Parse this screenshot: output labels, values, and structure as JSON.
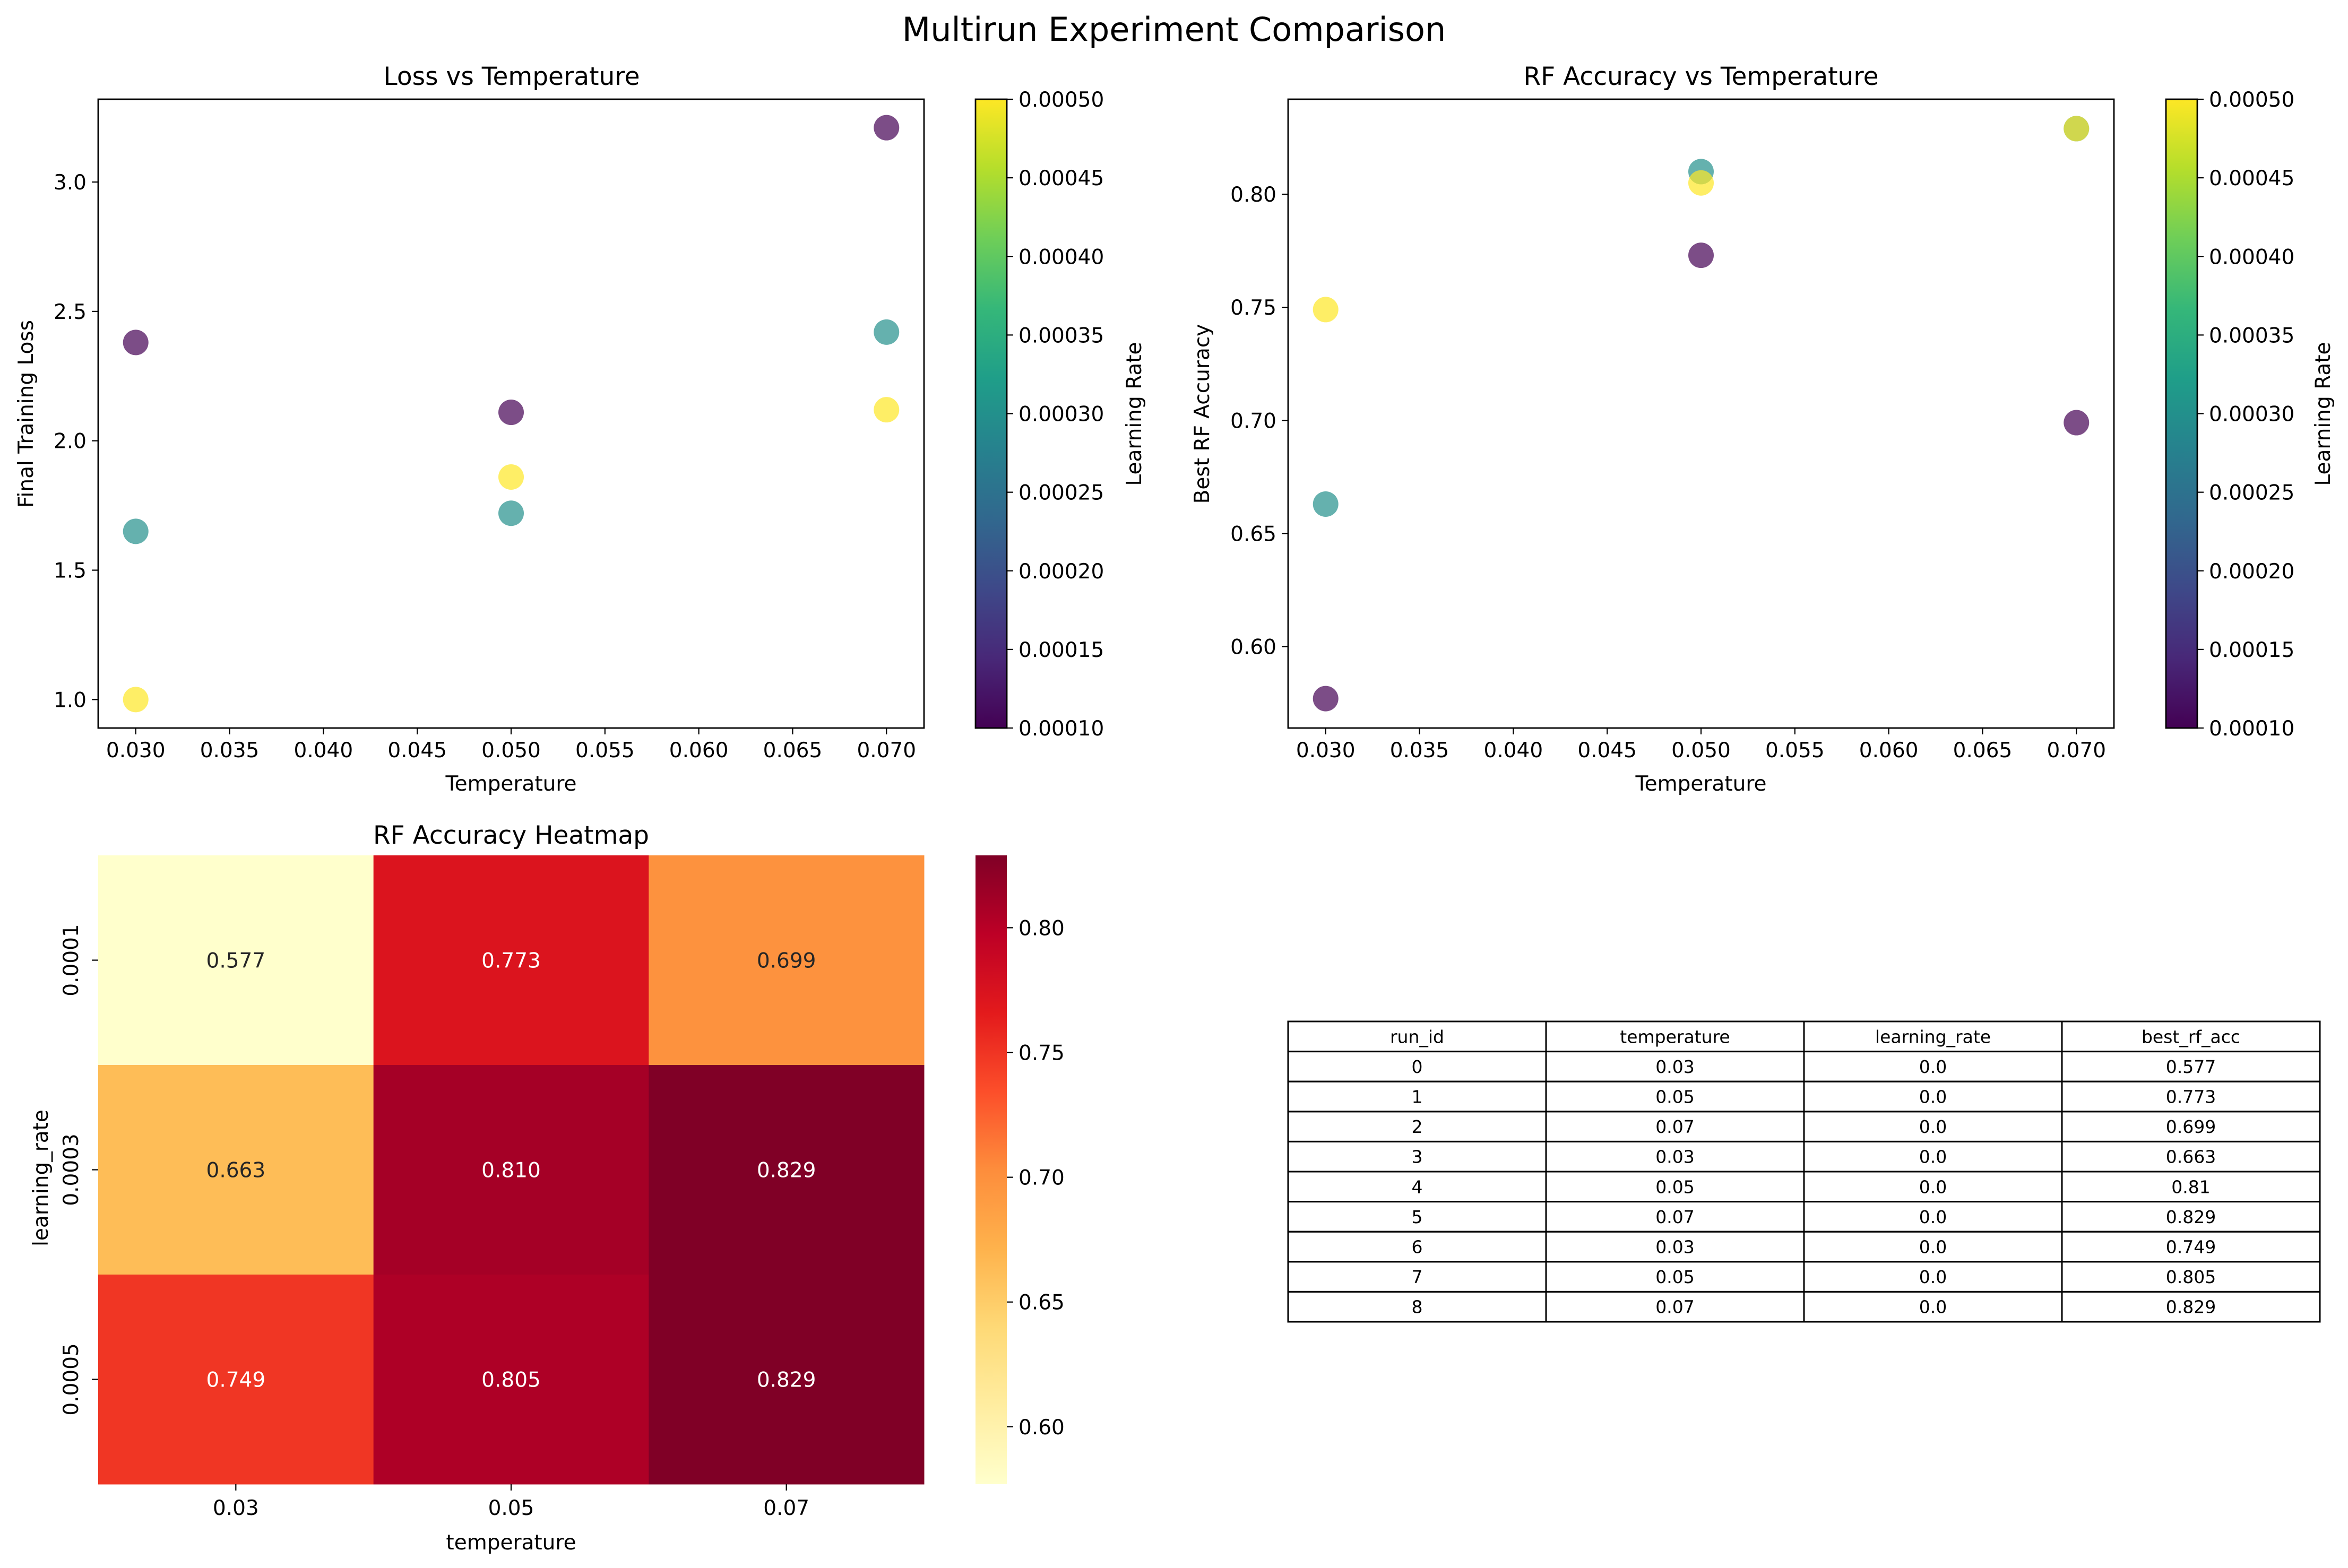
{
  "figure": {
    "suptitle": "Multirun Experiment Comparison"
  },
  "colors": {
    "viridis": [
      "#440154",
      "#482878",
      "#3e4989",
      "#31688e",
      "#26828e",
      "#1f9e89",
      "#35b779",
      "#6ece58",
      "#b5de2b",
      "#fde725"
    ],
    "ylorrd": [
      "#ffffcc",
      "#ffeda0",
      "#fed976",
      "#feb24c",
      "#fd8d3c",
      "#fc4e2a",
      "#e31a1c",
      "#bd0026",
      "#800026"
    ]
  },
  "chart_data": [
    {
      "type": "scatter",
      "title": "Loss vs Temperature",
      "xlabel": "Temperature",
      "ylabel": "Final Training Loss",
      "xlim": [
        0.028,
        0.072
      ],
      "ylim": [
        0.89,
        3.32
      ],
      "xticks": [
        0.03,
        0.035,
        0.04,
        0.045,
        0.05,
        0.055,
        0.06,
        0.065,
        0.07
      ],
      "xtick_labels": [
        "0.030",
        "0.035",
        "0.040",
        "0.045",
        "0.050",
        "0.055",
        "0.060",
        "0.065",
        "0.070"
      ],
      "yticks": [
        1.0,
        1.5,
        2.0,
        2.5,
        3.0
      ],
      "ytick_labels": [
        "1.0",
        "1.5",
        "2.0",
        "2.5",
        "3.0"
      ],
      "colorbar": {
        "label": "Learning Rate",
        "range": [
          0.0001,
          0.0005
        ],
        "ticks": [
          0.0001,
          0.00015,
          0.0002,
          0.00025,
          0.0003,
          0.00035,
          0.0004,
          0.00045,
          0.0005
        ],
        "tick_labels": [
          "0.00010",
          "0.00015",
          "0.00020",
          "0.00025",
          "0.00030",
          "0.00035",
          "0.00040",
          "0.00045",
          "0.00050"
        ]
      },
      "points": [
        {
          "x": 0.03,
          "y": 2.38,
          "c": 0.0001
        },
        {
          "x": 0.05,
          "y": 2.11,
          "c": 0.0001
        },
        {
          "x": 0.07,
          "y": 3.21,
          "c": 0.0001
        },
        {
          "x": 0.03,
          "y": 1.65,
          "c": 0.0003
        },
        {
          "x": 0.05,
          "y": 1.72,
          "c": 0.0003
        },
        {
          "x": 0.07,
          "y": 2.42,
          "c": 0.0003
        },
        {
          "x": 0.03,
          "y": 1.0,
          "c": 0.0005
        },
        {
          "x": 0.05,
          "y": 1.86,
          "c": 0.0005
        },
        {
          "x": 0.07,
          "y": 2.12,
          "c": 0.0005
        }
      ]
    },
    {
      "type": "scatter",
      "title": "RF Accuracy vs Temperature",
      "xlabel": "Temperature",
      "ylabel": "Best RF Accuracy",
      "xlim": [
        0.028,
        0.072
      ],
      "ylim": [
        0.564,
        0.842
      ],
      "xticks": [
        0.03,
        0.035,
        0.04,
        0.045,
        0.05,
        0.055,
        0.06,
        0.065,
        0.07
      ],
      "xtick_labels": [
        "0.030",
        "0.035",
        "0.040",
        "0.045",
        "0.050",
        "0.055",
        "0.060",
        "0.065",
        "0.070"
      ],
      "yticks": [
        0.6,
        0.65,
        0.7,
        0.75,
        0.8
      ],
      "ytick_labels": [
        "0.60",
        "0.65",
        "0.70",
        "0.75",
        "0.80"
      ],
      "colorbar": {
        "label": "Learning Rate",
        "range": [
          0.0001,
          0.0005
        ],
        "ticks": [
          0.0001,
          0.00015,
          0.0002,
          0.00025,
          0.0003,
          0.00035,
          0.0004,
          0.00045,
          0.0005
        ],
        "tick_labels": [
          "0.00010",
          "0.00015",
          "0.00020",
          "0.00025",
          "0.00030",
          "0.00035",
          "0.00040",
          "0.00045",
          "0.00050"
        ]
      },
      "points": [
        {
          "x": 0.03,
          "y": 0.577,
          "c": 0.0001
        },
        {
          "x": 0.05,
          "y": 0.773,
          "c": 0.0001
        },
        {
          "x": 0.07,
          "y": 0.699,
          "c": 0.0001
        },
        {
          "x": 0.03,
          "y": 0.663,
          "c": 0.0003
        },
        {
          "x": 0.05,
          "y": 0.81,
          "c": 0.0003
        },
        {
          "x": 0.07,
          "y": 0.829,
          "c": 0.0003
        },
        {
          "x": 0.03,
          "y": 0.749,
          "c": 0.0005
        },
        {
          "x": 0.05,
          "y": 0.805,
          "c": 0.0005
        },
        {
          "x": 0.07,
          "y": 0.829,
          "c": 0.0005
        }
      ]
    },
    {
      "type": "heatmap",
      "title": "RF Accuracy Heatmap",
      "xlabel": "temperature",
      "ylabel": "learning_rate",
      "x_categories": [
        "0.03",
        "0.05",
        "0.07"
      ],
      "y_categories": [
        "0.0001",
        "0.0003",
        "0.0005"
      ],
      "values": [
        [
          0.577,
          0.773,
          0.699
        ],
        [
          0.663,
          0.81,
          0.829
        ],
        [
          0.749,
          0.805,
          0.829
        ]
      ],
      "value_labels": [
        [
          "0.577",
          "0.773",
          "0.699"
        ],
        [
          "0.663",
          "0.810",
          "0.829"
        ],
        [
          "0.749",
          "0.805",
          "0.829"
        ]
      ],
      "colorbar": {
        "range": [
          0.577,
          0.829
        ],
        "ticks": [
          0.6,
          0.65,
          0.7,
          0.75,
          0.8
        ],
        "tick_labels": [
          "0.60",
          "0.65",
          "0.70",
          "0.75",
          "0.80"
        ]
      }
    },
    {
      "type": "table",
      "columns": [
        "run_id",
        "temperature",
        "learning_rate",
        "best_rf_acc"
      ],
      "rows": [
        [
          "0",
          "0.03",
          "0.0",
          "0.577"
        ],
        [
          "1",
          "0.05",
          "0.0",
          "0.773"
        ],
        [
          "2",
          "0.07",
          "0.0",
          "0.699"
        ],
        [
          "3",
          "0.03",
          "0.0",
          "0.663"
        ],
        [
          "4",
          "0.05",
          "0.0",
          "0.81"
        ],
        [
          "5",
          "0.07",
          "0.0",
          "0.829"
        ],
        [
          "6",
          "0.03",
          "0.0",
          "0.749"
        ],
        [
          "7",
          "0.05",
          "0.0",
          "0.805"
        ],
        [
          "8",
          "0.07",
          "0.0",
          "0.829"
        ]
      ]
    }
  ]
}
